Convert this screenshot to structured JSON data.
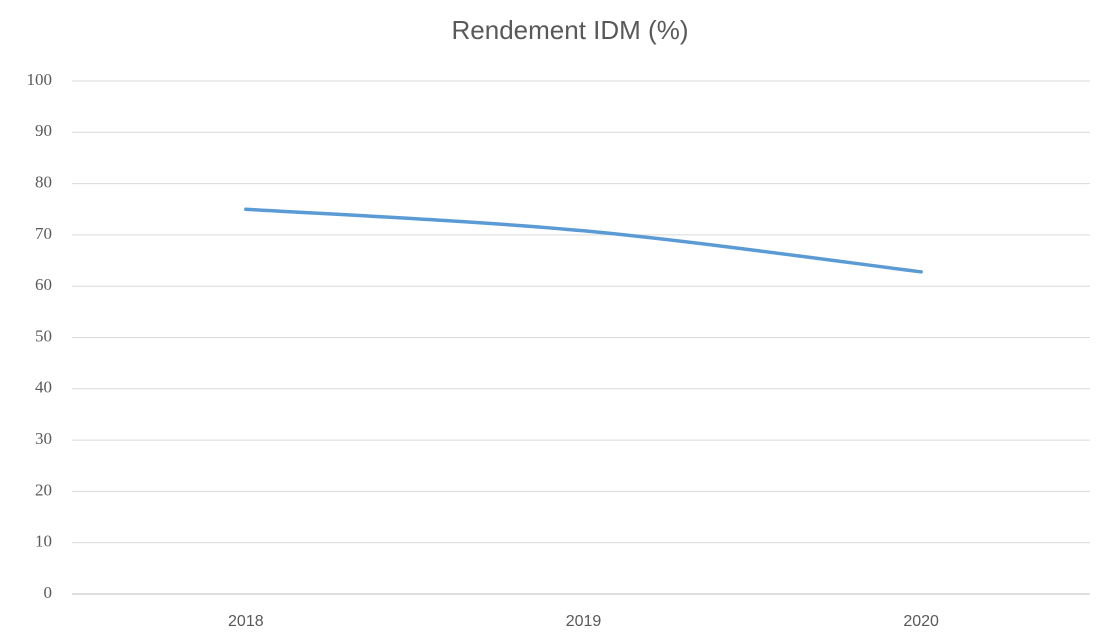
{
  "chart_data": {
    "type": "line",
    "title": "Rendement IDM (%)",
    "categories": [
      "2018",
      "2019",
      "2020"
    ],
    "series": [
      {
        "name": "Rendement IDM (%)",
        "color": "#5b9bd5",
        "values": [
          75,
          70.8,
          62.8
        ]
      }
    ],
    "ylim": [
      0,
      100
    ],
    "yticks": [
      0,
      10,
      20,
      30,
      40,
      50,
      60,
      70,
      80,
      90,
      100
    ],
    "grid": true,
    "smooth": true
  }
}
